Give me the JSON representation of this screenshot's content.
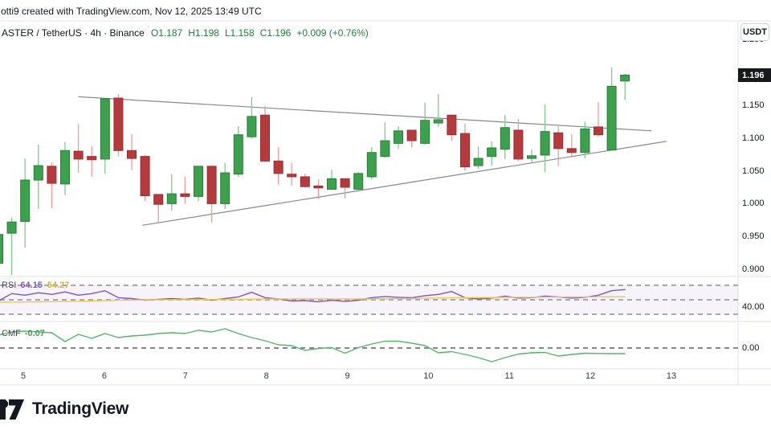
{
  "attribution": "otti9 created with TradingView.com, Nov 12, 2025 13:49 UTC",
  "legend": {
    "title": "ASTER / TetherUS · 4h · Binance",
    "open_label": "O",
    "open": "1.187",
    "high_label": "H",
    "high": "1.198",
    "low_label": "L",
    "low": "1.158",
    "close_label": "C",
    "close": "1.196",
    "change": "+0.009 (+0.76%)"
  },
  "indicators": {
    "rsi_label": "RSI",
    "rsi_value": "64.15",
    "rsi_ma_value": "54.27",
    "cmf_label": "CMF",
    "cmf_value": "-0.07"
  },
  "price_axis": {
    "currency_button": "USDT",
    "ticks": [
      "1.250",
      "1.150",
      "1.100",
      "1.050",
      "1.000",
      "0.950",
      "0.900"
    ],
    "last_price_badge": "1.196",
    "rsi_tick": "40.00",
    "cmf_tick": "0.00"
  },
  "time_axis": {
    "ticks": [
      "5",
      "6",
      "7",
      "8",
      "9",
      "10",
      "11",
      "12",
      "13"
    ]
  },
  "footer": {
    "brand": "TradingView"
  },
  "colors": {
    "background": "#ffffff",
    "separator": "#e1e3eb",
    "candle_up_body": "#3ba14c",
    "candle_up_border": "#2a7d3a",
    "candle_up_wick": "#7fcb8b",
    "candle_down_body": "#b43a3e",
    "candle_down_border": "#9c2f33",
    "candle_down_wick": "#f29b9b",
    "trendline": "#85888f",
    "rsi_line": "#7e57c2",
    "rsi_ma_line": "#efc64f",
    "rsi_band_fill": "rgba(126,87,194,0.07)",
    "rsi_band_dash": "#a6a9b3",
    "cmf_line": "#56b568",
    "cmf_zero_dash": "#5d616b",
    "badge_bg": "#17181c",
    "badge_text": "#ffffff"
  },
  "chart_data": {
    "type": "candlestick",
    "title": "ASTER / TetherUS · 4h · Binance",
    "exchange": "Binance",
    "timeframe": "4h",
    "legend_ohlc": {
      "open": 1.187,
      "high": 1.198,
      "low": 1.158,
      "close": 1.196,
      "change": 0.009,
      "change_pct": 0.76
    },
    "price_pane": {
      "ylim": [
        0.885,
        1.26
      ],
      "price_ticks_shown": [
        1.25,
        1.15,
        1.1,
        1.05,
        1.0,
        0.95,
        0.9
      ],
      "last_price": 1.196,
      "candles_ohlc": [
        [
          0.909,
          0.961,
          0.888,
          0.953
        ],
        [
          0.955,
          0.979,
          0.891,
          0.972
        ],
        [
          0.973,
          1.069,
          0.933,
          1.036
        ],
        [
          1.036,
          1.09,
          0.992,
          1.058
        ],
        [
          1.057,
          1.063,
          0.993,
          1.031
        ],
        [
          1.03,
          1.094,
          1.013,
          1.081
        ],
        [
          1.08,
          1.121,
          1.047,
          1.068
        ],
        [
          1.072,
          1.087,
          1.041,
          1.067
        ],
        [
          1.068,
          1.16,
          1.046,
          1.16
        ],
        [
          1.161,
          1.167,
          1.072,
          1.081
        ],
        [
          1.081,
          1.106,
          1.051,
          1.069
        ],
        [
          1.072,
          1.074,
          1.004,
          1.012
        ],
        [
          1.014,
          1.014,
          0.97,
          0.999
        ],
        [
          1.0,
          1.045,
          0.989,
          1.015
        ],
        [
          1.015,
          1.041,
          1.0,
          1.011
        ],
        [
          1.011,
          1.057,
          1.004,
          1.057
        ],
        [
          1.057,
          1.057,
          0.971,
          1.0
        ],
        [
          1.0,
          1.062,
          0.992,
          1.047
        ],
        [
          1.045,
          1.118,
          1.041,
          1.105
        ],
        [
          1.102,
          1.162,
          1.099,
          1.133
        ],
        [
          1.135,
          1.149,
          1.063,
          1.065
        ],
        [
          1.065,
          1.086,
          1.029,
          1.046
        ],
        [
          1.045,
          1.062,
          1.027,
          1.041
        ],
        [
          1.041,
          1.046,
          1.025,
          1.026
        ],
        [
          1.027,
          1.037,
          1.007,
          1.024
        ],
        [
          1.022,
          1.052,
          1.021,
          1.038
        ],
        [
          1.038,
          1.038,
          1.008,
          1.025
        ],
        [
          1.022,
          1.048,
          1.02,
          1.046
        ],
        [
          1.041,
          1.086,
          1.037,
          1.078
        ],
        [
          1.072,
          1.124,
          1.07,
          1.096
        ],
        [
          1.092,
          1.118,
          1.084,
          1.111
        ],
        [
          1.112,
          1.112,
          1.086,
          1.096
        ],
        [
          1.092,
          1.154,
          1.09,
          1.127
        ],
        [
          1.123,
          1.167,
          1.117,
          1.128
        ],
        [
          1.135,
          1.135,
          1.096,
          1.105
        ],
        [
          1.107,
          1.122,
          1.05,
          1.056
        ],
        [
          1.058,
          1.087,
          1.053,
          1.069
        ],
        [
          1.072,
          1.095,
          1.058,
          1.085
        ],
        [
          1.083,
          1.135,
          1.068,
          1.116
        ],
        [
          1.112,
          1.129,
          1.065,
          1.068
        ],
        [
          1.069,
          1.083,
          1.063,
          1.073
        ],
        [
          1.074,
          1.151,
          1.048,
          1.11
        ],
        [
          1.108,
          1.118,
          1.057,
          1.084
        ],
        [
          1.084,
          1.106,
          1.072,
          1.078
        ],
        [
          1.078,
          1.125,
          1.069,
          1.114
        ],
        [
          1.117,
          1.155,
          1.102,
          1.105
        ],
        [
          1.082,
          1.208,
          1.082,
          1.179
        ],
        [
          1.187,
          1.198,
          1.158,
          1.196
        ]
      ],
      "trendlines": [
        {
          "from_bar": 6.0,
          "from_price": 1.163,
          "to_bar": 49.0,
          "to_price": 1.111
        },
        {
          "from_bar": 10.8,
          "from_price": 0.967,
          "to_bar": 50.1,
          "to_price": 1.095
        }
      ]
    },
    "rsi_pane": {
      "type": "line",
      "label": "RSI",
      "current": 64.15,
      "ma_current": 54.27,
      "band": [
        30,
        70
      ],
      "midline": 50,
      "tick_shown": 40,
      "rsi_values": [
        48.3,
        58.6,
        56.3,
        59.7,
        57.4,
        60.9,
        56.3,
        58.6,
        62.6,
        52.9,
        51.7,
        49.4,
        50.6,
        51.7,
        50.6,
        52.3,
        49.4,
        51.7,
        54.0,
        60.3,
        52.9,
        51.1,
        48.3,
        48.9,
        47.1,
        49.4,
        47.7,
        49.4,
        52.9,
        54.6,
        53.4,
        52.9,
        55.7,
        57.4,
        61.4,
        52.9,
        51.1,
        52.3,
        55.1,
        52.3,
        52.9,
        55.1,
        54.0,
        52.3,
        53.4,
        56.3,
        62.6,
        64.15
      ],
      "ma_values": [
        46.6,
        46.8,
        47.0,
        47.2,
        47.4,
        47.6,
        47.9,
        48.3,
        48.8,
        49.3,
        49.7,
        50.0,
        50.1,
        50.2,
        50.2,
        50.3,
        50.3,
        50.4,
        50.5,
        50.8,
        51.0,
        51.1,
        51.2,
        51.3,
        51.2,
        51.2,
        51.1,
        51.1,
        51.2,
        51.4,
        51.6,
        51.8,
        52.1,
        52.4,
        52.7,
        52.9,
        53.0,
        53.1,
        53.3,
        53.4,
        53.5,
        53.7,
        53.8,
        53.9,
        54.0,
        54.1,
        54.2,
        54.27
      ]
    },
    "cmf_pane": {
      "type": "line",
      "label": "CMF",
      "current": -0.07,
      "tick_shown": 0,
      "values": [
        0.16,
        0.2,
        0.21,
        0.2,
        0.19,
        0.08,
        0.17,
        0.12,
        0.18,
        0.13,
        0.15,
        0.16,
        0.18,
        0.19,
        0.18,
        0.22,
        0.2,
        0.24,
        0.18,
        0.13,
        0.09,
        0.04,
        0.03,
        -0.03,
        -0.005,
        0.005,
        -0.065,
        0.005,
        0.05,
        0.085,
        0.085,
        0.06,
        0.03,
        -0.06,
        -0.045,
        -0.08,
        -0.12,
        -0.17,
        -0.12,
        -0.075,
        -0.06,
        -0.055,
        -0.1,
        -0.08,
        -0.065,
        -0.068,
        -0.07,
        -0.07
      ]
    },
    "x_axis": {
      "day_labels": [
        "5",
        "6",
        "7",
        "8",
        "9",
        "10",
        "11",
        "12",
        "13"
      ],
      "bars_per_day": 6
    }
  }
}
